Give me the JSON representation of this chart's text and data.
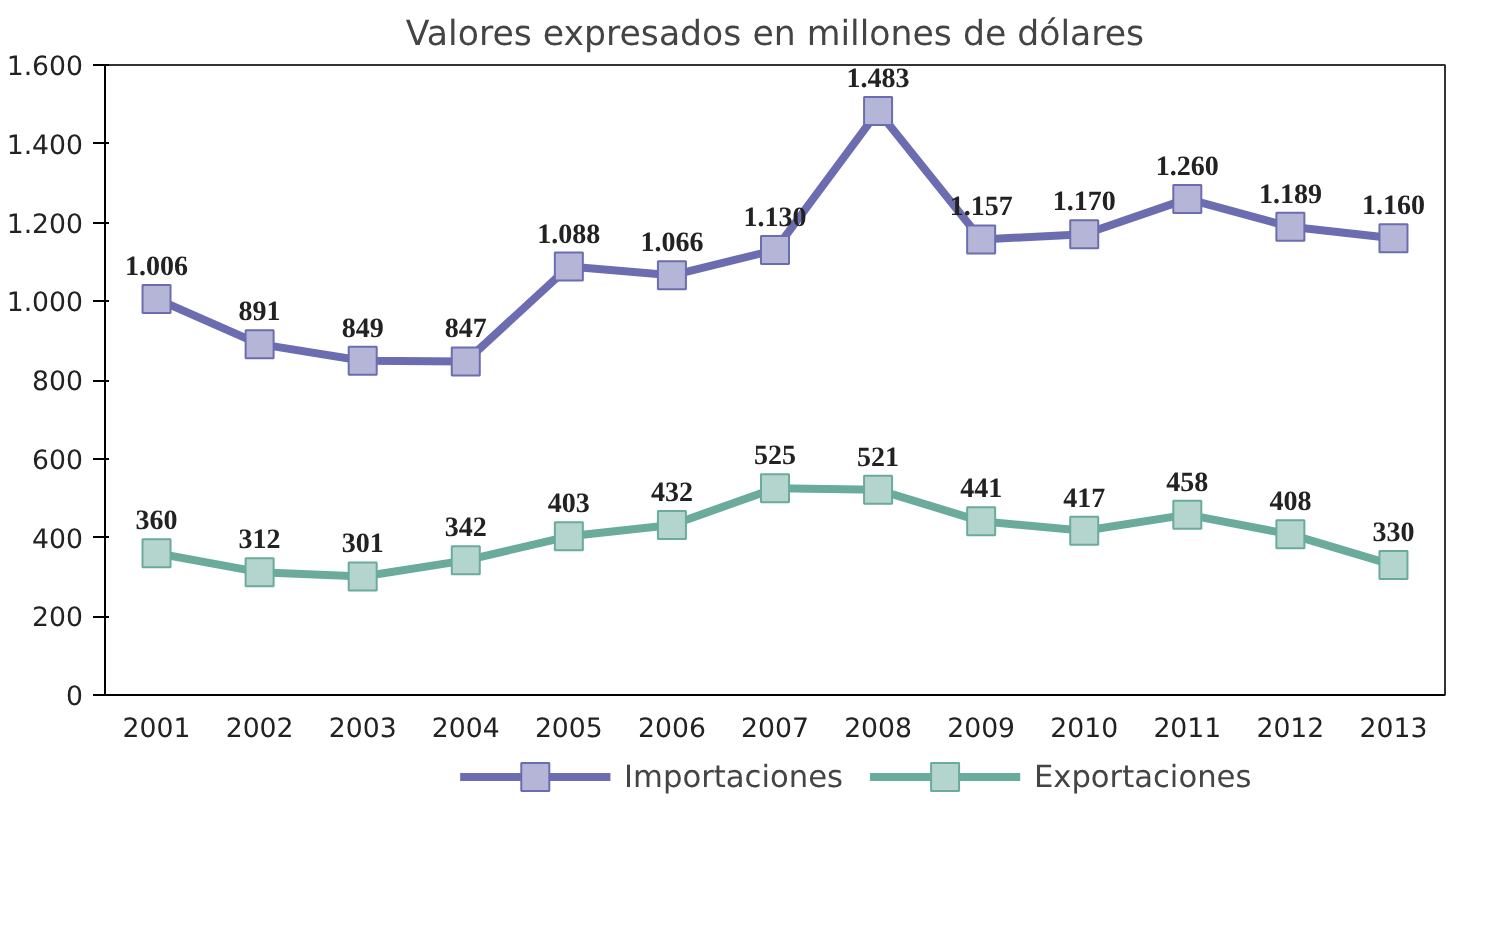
{
  "chart_data": {
    "type": "line",
    "title": "Valores expresados en millones de dólares",
    "categories": [
      "2001",
      "2002",
      "2003",
      "2004",
      "2005",
      "2006",
      "2007",
      "2008",
      "2009",
      "2010",
      "2011",
      "2012",
      "2013"
    ],
    "series": [
      {
        "name": "Importaciones",
        "color": "#6c6db0",
        "values": [
          1006,
          891,
          849,
          847,
          1088,
          1066,
          1130,
          1483,
          1157,
          1170,
          1260,
          1189,
          1160
        ],
        "value_labels": [
          "1.006",
          "891",
          "849",
          "847",
          "1.088",
          "1.066",
          "1.130",
          "1.483",
          "1.157",
          "1.170",
          "1.260",
          "1.189",
          "1.160"
        ]
      },
      {
        "name": "Exportaciones",
        "color": "#6aab9c",
        "values": [
          360,
          312,
          301,
          342,
          403,
          432,
          525,
          521,
          441,
          417,
          458,
          408,
          330
        ],
        "value_labels": [
          "360",
          "312",
          "301",
          "342",
          "403",
          "432",
          "525",
          "521",
          "441",
          "417",
          "458",
          "408",
          "330"
        ]
      }
    ],
    "ylim": [
      0,
      1600
    ],
    "yticks": [
      {
        "value": 0,
        "label": "0"
      },
      {
        "value": 200,
        "label": "200"
      },
      {
        "value": 400,
        "label": "400"
      },
      {
        "value": 600,
        "label": "600"
      },
      {
        "value": 800,
        "label": "800"
      },
      {
        "value": 1000,
        "label": "1.000"
      },
      {
        "value": 1200,
        "label": "1.200"
      },
      {
        "value": 1400,
        "label": "1.400"
      },
      {
        "value": 1600,
        "label": "1.600"
      }
    ],
    "legend": "bottom",
    "marker": "square",
    "line_style": "solid"
  }
}
